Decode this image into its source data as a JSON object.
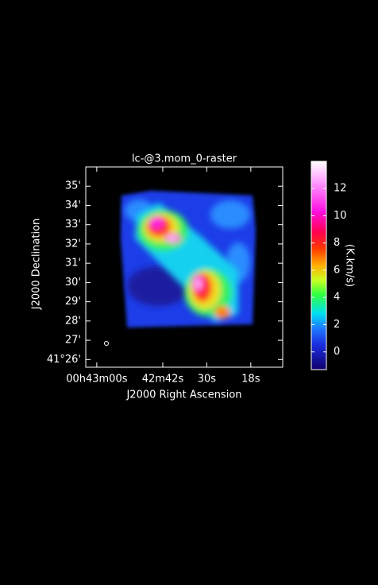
{
  "chart_data": {
    "type": "raster",
    "title": "lc-@3.mom_0-raster",
    "xlabel": "J2000 Right Ascension",
    "ylabel": "J2000 Declination",
    "colorbar_label": "(K.km/s)",
    "xlim": [
      2583,
      2529.3
    ],
    "xticks": [
      {
        "value": 2580,
        "label": "00h43m00s"
      },
      {
        "value": 2562,
        "label": "42m42s"
      },
      {
        "value": 2550,
        "label": "30s"
      },
      {
        "value": 2538,
        "label": "18s"
      }
    ],
    "ylim": [
      25.6,
      36
    ],
    "yticks": [
      {
        "value": 26,
        "label": "41°26'"
      },
      {
        "value": 27,
        "label": "27'"
      },
      {
        "value": 28,
        "label": "28'"
      },
      {
        "value": 29,
        "label": "29'"
      },
      {
        "value": 30,
        "label": "30'"
      },
      {
        "value": 31,
        "label": "31'"
      },
      {
        "value": 32,
        "label": "32'"
      },
      {
        "value": 33,
        "label": "33'"
      },
      {
        "value": 34,
        "label": "34'"
      },
      {
        "value": 35,
        "label": "35'"
      }
    ],
    "clim": [
      -1.3,
      14
    ],
    "cticks": [
      0,
      2,
      4,
      6,
      8,
      10,
      12
    ]
  }
}
